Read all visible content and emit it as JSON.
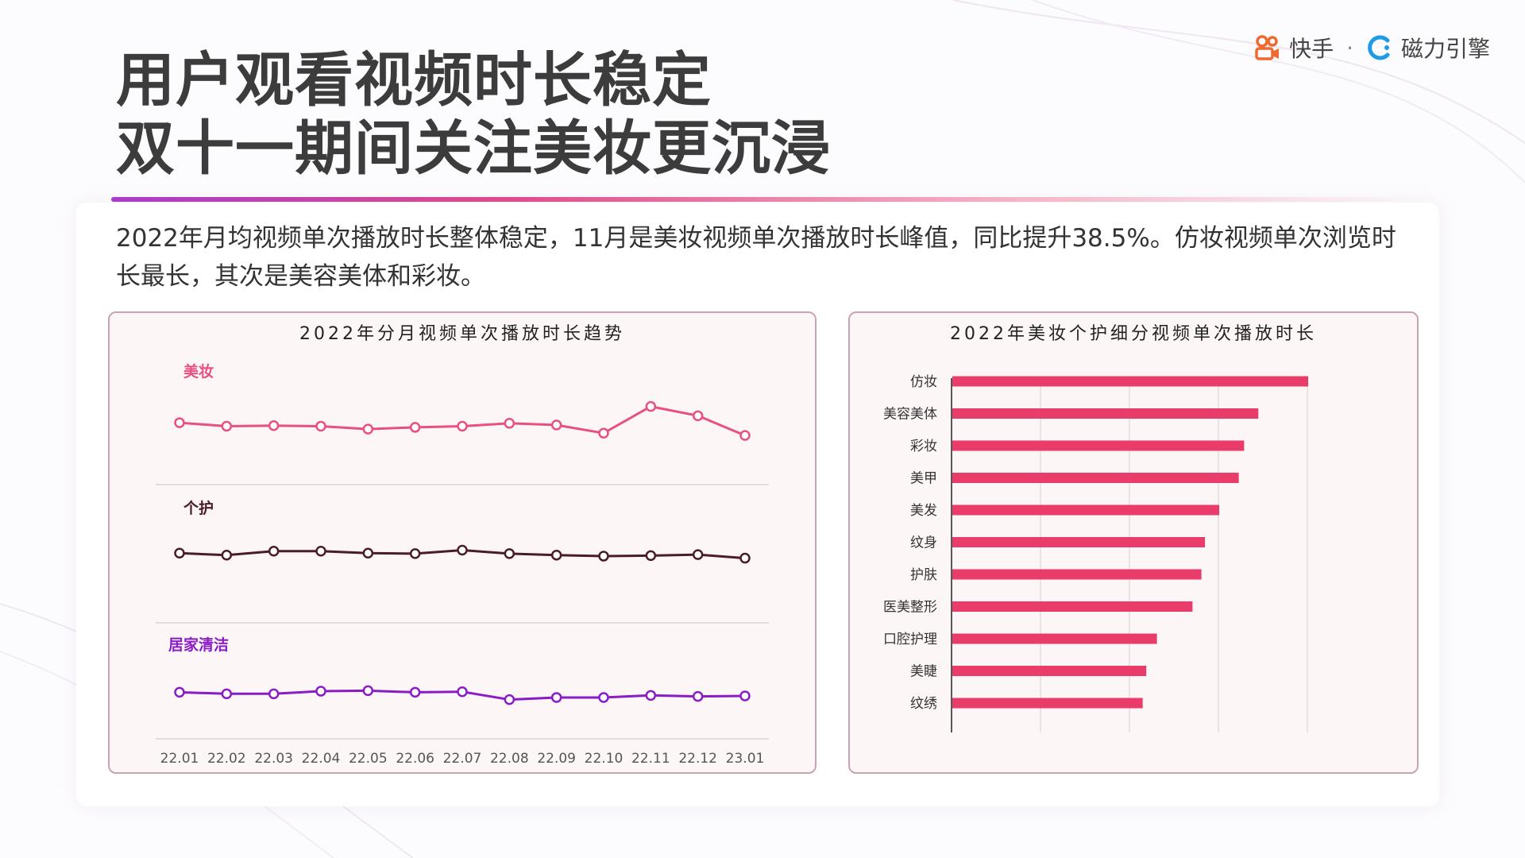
{
  "colors": {
    "makeup": "#e8507e",
    "personal_care": "#4a1c28",
    "home_cleaning": "#8a1cc6",
    "bar": "#ea3c6a",
    "title": "#3c3c3c"
  },
  "header": {
    "title_line1": "用户观看视频时长稳定",
    "title_line2": "双十一期间关注美妆更沉浸",
    "logo_kuaishou": "快手",
    "logo_dot": "·",
    "logo_cili": "磁力引擎"
  },
  "summary": "2022年月均视频单次播放时长整体稳定，11月是美妆视频单次播放时长峰值，同比提升38.5%。仿妆视频单次浏览时长最长，其次是美容美体和彩妆。",
  "chart_data": [
    {
      "type": "line",
      "title": "2022年分月视频单次播放时长趋势",
      "x": [
        "22.01",
        "22.02",
        "22.03",
        "22.04",
        "22.05",
        "22.06",
        "22.07",
        "22.08",
        "22.09",
        "22.10",
        "22.11",
        "22.12",
        "23.01"
      ],
      "series": [
        {
          "name": "美妆",
          "values": [
            52,
            49,
            49.5,
            49,
            46.5,
            48,
            49,
            51.5,
            50,
            43,
            66,
            58,
            41
          ],
          "ylim": [
            0,
            100
          ]
        },
        {
          "name": "个护",
          "values": [
            49,
            47,
            51,
            51,
            49,
            48.5,
            52,
            48.5,
            47,
            46,
            46.5,
            47.5,
            44
          ],
          "ylim": [
            0,
            100
          ]
        },
        {
          "name": "居家清洁",
          "values": [
            52,
            50.5,
            50.5,
            53,
            53.5,
            52,
            52.5,
            45,
            47,
            47,
            49,
            48,
            48.5
          ],
          "ylim": [
            0,
            100
          ]
        }
      ],
      "xlabel": "",
      "ylabel": "",
      "grid": false
    },
    {
      "type": "bar",
      "orientation": "horizontal",
      "title": "2022年美妆个护细分视频单次播放时长",
      "categories": [
        "仿妆",
        "美容美体",
        "彩妆",
        "美甲",
        "美发",
        "纹身",
        "护肤",
        "医美整形",
        "口腔护理",
        "美睫",
        "纹绣"
      ],
      "values": [
        100,
        86,
        82,
        80.5,
        75,
        71,
        70,
        67.5,
        57.5,
        54.5,
        53.5
      ],
      "xlim": [
        0,
        100
      ],
      "grid": true
    }
  ]
}
